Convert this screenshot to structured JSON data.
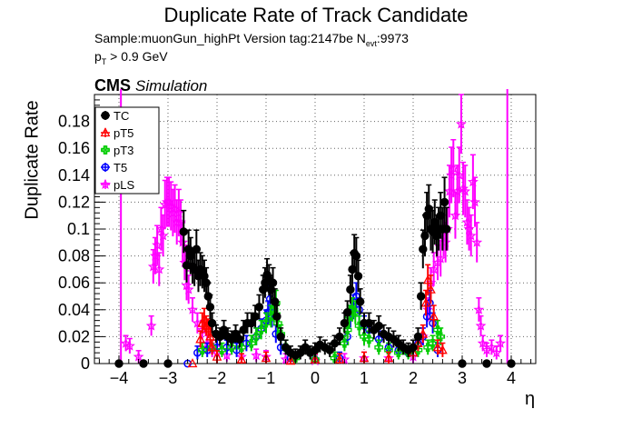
{
  "header": {
    "title": "Duplicate Rate of Track Candidate",
    "sample_line": "Sample:muonGun_highPt   Version tag:2147be  N",
    "nevt_sub": "evt",
    "nevt_value": ":9973",
    "pt_p": "p",
    "pt_sub": "T",
    "pt_rest": " > 0.9 GeV",
    "cms": "CMS",
    "simulation": "Simulation"
  },
  "chart_data": {
    "type": "scatter",
    "xlabel": "η",
    "ylabel": "Duplicate Rate",
    "xlim": [
      -4.5,
      4.5
    ],
    "ylim": [
      0,
      0.2
    ],
    "xticks": [
      -4,
      -3,
      -2,
      -1,
      0,
      1,
      2,
      3,
      4
    ],
    "xtick_labels": [
      "−4",
      "−3",
      "−2",
      "−1",
      "0",
      "1",
      "2",
      "3",
      "4"
    ],
    "yticks": [
      0,
      0.02,
      0.04,
      0.06,
      0.08,
      0.1,
      0.12,
      0.14,
      0.16,
      0.18
    ],
    "ytick_labels": [
      "0",
      "0.02",
      "0.04",
      "0.06",
      "0.08",
      "0.1",
      "0.12",
      "0.14",
      "0.16",
      "0.18"
    ],
    "grid": true,
    "legend_position": "top-left",
    "series": [
      {
        "name": "TC",
        "color": "#000000",
        "marker": "filled-circle",
        "points": [
          [
            -4.0,
            0.0
          ],
          [
            -3.5,
            0.0
          ],
          [
            -3.0,
            0.0
          ],
          [
            -2.68,
            0.098
          ],
          [
            -2.62,
            0.073
          ],
          [
            -2.58,
            0.085
          ],
          [
            -2.54,
            0.08
          ],
          [
            -2.5,
            0.072
          ],
          [
            -2.46,
            0.07
          ],
          [
            -2.42,
            0.085
          ],
          [
            -2.38,
            0.065
          ],
          [
            -2.34,
            0.07
          ],
          [
            -2.3,
            0.068
          ],
          [
            -2.26,
            0.065
          ],
          [
            -2.22,
            0.06
          ],
          [
            -2.18,
            0.05
          ],
          [
            -2.14,
            0.042
          ],
          [
            -2.1,
            0.03
          ],
          [
            -2.02,
            0.022
          ],
          [
            -1.94,
            0.02
          ],
          [
            -1.86,
            0.025
          ],
          [
            -1.78,
            0.02
          ],
          [
            -1.7,
            0.018
          ],
          [
            -1.62,
            0.022
          ],
          [
            -1.54,
            0.018
          ],
          [
            -1.46,
            0.025
          ],
          [
            -1.38,
            0.03
          ],
          [
            -1.3,
            0.03
          ],
          [
            -1.22,
            0.035
          ],
          [
            -1.14,
            0.042
          ],
          [
            -1.06,
            0.055
          ],
          [
            -1.02,
            0.06
          ],
          [
            -0.98,
            0.066
          ],
          [
            -0.94,
            0.062
          ],
          [
            -0.9,
            0.055
          ],
          [
            -0.86,
            0.06
          ],
          [
            -0.82,
            0.046
          ],
          [
            -0.78,
            0.035
          ],
          [
            -0.7,
            0.02
          ],
          [
            -0.6,
            0.012
          ],
          [
            -0.5,
            0.008
          ],
          [
            -0.4,
            0.006
          ],
          [
            -0.3,
            0.008
          ],
          [
            -0.2,
            0.012
          ],
          [
            -0.1,
            0.008
          ],
          [
            0.0,
            0.01
          ],
          [
            0.1,
            0.014
          ],
          [
            0.2,
            0.012
          ],
          [
            0.3,
            0.01
          ],
          [
            0.4,
            0.015
          ],
          [
            0.5,
            0.02
          ],
          [
            0.6,
            0.03
          ],
          [
            0.66,
            0.038
          ],
          [
            0.72,
            0.055
          ],
          [
            0.76,
            0.07
          ],
          [
            0.8,
            0.082
          ],
          [
            0.84,
            0.08
          ],
          [
            0.88,
            0.065
          ],
          [
            0.92,
            0.046
          ],
          [
            1.0,
            0.03
          ],
          [
            1.1,
            0.03
          ],
          [
            1.2,
            0.025
          ],
          [
            1.3,
            0.028
          ],
          [
            1.4,
            0.022
          ],
          [
            1.5,
            0.02
          ],
          [
            1.6,
            0.018
          ],
          [
            1.7,
            0.015
          ],
          [
            1.8,
            0.012
          ],
          [
            1.9,
            0.01
          ],
          [
            2.0,
            0.012
          ],
          [
            2.1,
            0.02
          ],
          [
            2.16,
            0.05
          ],
          [
            2.2,
            0.085
          ],
          [
            2.24,
            0.095
          ],
          [
            2.28,
            0.11
          ],
          [
            2.32,
            0.115
          ],
          [
            2.36,
            0.1
          ],
          [
            2.4,
            0.098
          ],
          [
            2.44,
            0.105
          ],
          [
            2.48,
            0.095
          ],
          [
            2.52,
            0.1
          ],
          [
            2.56,
            0.11
          ],
          [
            2.6,
            0.1
          ],
          [
            2.64,
            0.12
          ],
          [
            2.68,
            0.1
          ],
          [
            3.0,
            0.0
          ],
          [
            3.5,
            0.0
          ],
          [
            4.0,
            0.0
          ]
        ]
      },
      {
        "name": "pT5",
        "color": "#ff0000",
        "marker": "open-triangle",
        "points": [
          [
            -2.5,
            0.0
          ],
          [
            -2.34,
            0.018
          ],
          [
            -2.3,
            0.03
          ],
          [
            -2.26,
            0.033
          ],
          [
            -2.22,
            0.028
          ],
          [
            -2.18,
            0.026
          ],
          [
            -2.14,
            0.02
          ],
          [
            -2.1,
            0.012
          ],
          [
            -2.0,
            0.005
          ],
          [
            -1.5,
            0.003
          ],
          [
            -1.0,
            0.004
          ],
          [
            -0.5,
            0.002
          ],
          [
            0.0,
            0.003
          ],
          [
            0.5,
            0.003
          ],
          [
            1.0,
            0.004
          ],
          [
            1.5,
            0.004
          ],
          [
            2.0,
            0.008
          ],
          [
            2.1,
            0.015
          ],
          [
            2.2,
            0.022
          ],
          [
            2.26,
            0.045
          ],
          [
            2.3,
            0.062
          ],
          [
            2.36,
            0.055
          ],
          [
            2.42,
            0.035
          ],
          [
            2.5,
            0.012
          ],
          [
            2.6,
            0.01
          ]
        ]
      },
      {
        "name": "pT3",
        "color": "#00cc00",
        "marker": "open-cross",
        "points": [
          [
            -2.3,
            0.01
          ],
          [
            -2.1,
            0.012
          ],
          [
            -1.9,
            0.01
          ],
          [
            -1.7,
            0.012
          ],
          [
            -1.5,
            0.012
          ],
          [
            -1.3,
            0.015
          ],
          [
            -1.2,
            0.02
          ],
          [
            -1.1,
            0.025
          ],
          [
            -1.0,
            0.03
          ],
          [
            -0.9,
            0.035
          ],
          [
            -0.84,
            0.04
          ],
          [
            -0.8,
            0.045
          ],
          [
            -0.76,
            0.03
          ],
          [
            -0.7,
            0.022
          ],
          [
            -0.6,
            0.012
          ],
          [
            -0.4,
            0.004
          ],
          [
            0.0,
            0.003
          ],
          [
            0.4,
            0.004
          ],
          [
            0.6,
            0.015
          ],
          [
            0.66,
            0.025
          ],
          [
            0.7,
            0.035
          ],
          [
            0.76,
            0.04
          ],
          [
            0.82,
            0.038
          ],
          [
            0.9,
            0.028
          ],
          [
            1.0,
            0.02
          ],
          [
            1.1,
            0.018
          ],
          [
            1.3,
            0.012
          ],
          [
            1.5,
            0.01
          ],
          [
            1.7,
            0.008
          ],
          [
            1.9,
            0.008
          ],
          [
            2.1,
            0.01
          ],
          [
            2.3,
            0.012
          ],
          [
            2.4,
            0.015
          ],
          [
            2.5,
            0.025
          ],
          [
            2.56,
            0.02
          ]
        ]
      },
      {
        "name": "T5",
        "color": "#0000ff",
        "marker": "open-circle",
        "points": [
          [
            -2.6,
            0.0
          ],
          [
            -2.4,
            0.008
          ],
          [
            -2.2,
            0.01
          ],
          [
            -2.0,
            0.012
          ],
          [
            -1.8,
            0.012
          ],
          [
            -1.6,
            0.01
          ],
          [
            -1.4,
            0.015
          ],
          [
            -1.2,
            0.02
          ],
          [
            -1.1,
            0.026
          ],
          [
            -1.0,
            0.032
          ],
          [
            -0.96,
            0.038
          ],
          [
            -0.92,
            0.048
          ],
          [
            -0.88,
            0.035
          ],
          [
            -0.8,
            0.022
          ],
          [
            -0.7,
            0.012
          ],
          [
            -0.5,
            0.004
          ],
          [
            0.0,
            0.003
          ],
          [
            0.5,
            0.004
          ],
          [
            0.66,
            0.02
          ],
          [
            0.72,
            0.035
          ],
          [
            0.78,
            0.042
          ],
          [
            0.84,
            0.05
          ],
          [
            0.9,
            0.04
          ],
          [
            1.0,
            0.028
          ],
          [
            1.1,
            0.025
          ],
          [
            1.3,
            0.018
          ],
          [
            1.5,
            0.012
          ],
          [
            1.7,
            0.01
          ],
          [
            1.9,
            0.008
          ],
          [
            2.1,
            0.015
          ],
          [
            2.2,
            0.02
          ],
          [
            2.28,
            0.035
          ],
          [
            2.34,
            0.045
          ],
          [
            2.4,
            0.03
          ],
          [
            2.5,
            0.01
          ]
        ]
      },
      {
        "name": "pLS",
        "color": "#ff00ff",
        "marker": "open-star",
        "points": [
          [
            -3.86,
            0.015
          ],
          [
            -3.78,
            0.013
          ],
          [
            -3.6,
            0.005
          ],
          [
            -3.34,
            0.028
          ],
          [
            -3.3,
            0.072
          ],
          [
            -3.26,
            0.08
          ],
          [
            -3.22,
            0.088
          ],
          [
            -3.18,
            0.07
          ],
          [
            -3.14,
            0.1
          ],
          [
            -3.1,
            0.095
          ],
          [
            -3.06,
            0.118
          ],
          [
            -3.02,
            0.12
          ],
          [
            -2.98,
            0.12
          ],
          [
            -2.94,
            0.117
          ],
          [
            -2.9,
            0.112
          ],
          [
            -2.86,
            0.115
          ],
          [
            -2.82,
            0.105
          ],
          [
            -2.78,
            0.112
          ],
          [
            -2.74,
            0.105
          ],
          [
            -2.7,
            0.09
          ],
          [
            -2.66,
            0.075
          ],
          [
            -2.62,
            0.058
          ],
          [
            -2.58,
            0.055
          ],
          [
            -2.5,
            0.04
          ],
          [
            -2.4,
            0.03
          ],
          [
            -2.3,
            0.025
          ],
          [
            -2.2,
            0.015
          ],
          [
            -2.1,
            0.01
          ],
          [
            -2.0,
            0.008
          ],
          [
            -1.8,
            0.006
          ],
          [
            -1.5,
            0.005
          ],
          [
            -1.2,
            0.006
          ],
          [
            -1.0,
            0.005
          ],
          [
            -0.6,
            0.003
          ],
          [
            0.0,
            0.002
          ],
          [
            0.6,
            0.003
          ],
          [
            1.0,
            0.004
          ],
          [
            1.5,
            0.004
          ],
          [
            2.0,
            0.005
          ],
          [
            2.2,
            0.02
          ],
          [
            2.3,
            0.04
          ],
          [
            2.36,
            0.06
          ],
          [
            2.42,
            0.07
          ],
          [
            2.5,
            0.075
          ],
          [
            2.56,
            0.078
          ],
          [
            2.62,
            0.095
          ],
          [
            2.66,
            0.09
          ],
          [
            2.7,
            0.1
          ],
          [
            2.74,
            0.128
          ],
          [
            2.78,
            0.14
          ],
          [
            2.82,
            0.145
          ],
          [
            2.86,
            0.11
          ],
          [
            2.9,
            0.128
          ],
          [
            2.94,
            0.14
          ],
          [
            2.98,
            0.178
          ],
          [
            3.02,
            0.13
          ],
          [
            3.06,
            0.128
          ],
          [
            3.1,
            0.105
          ],
          [
            3.14,
            0.1
          ],
          [
            3.18,
            0.095
          ],
          [
            3.22,
            0.135
          ],
          [
            3.26,
            0.12
          ],
          [
            3.3,
            0.09
          ],
          [
            3.34,
            0.04
          ],
          [
            3.38,
            0.028
          ],
          [
            3.42,
            0.015
          ],
          [
            3.5,
            0.01
          ],
          [
            3.6,
            0.012
          ],
          [
            3.7,
            0.008
          ],
          [
            3.78,
            0.015
          ]
        ]
      }
    ]
  }
}
